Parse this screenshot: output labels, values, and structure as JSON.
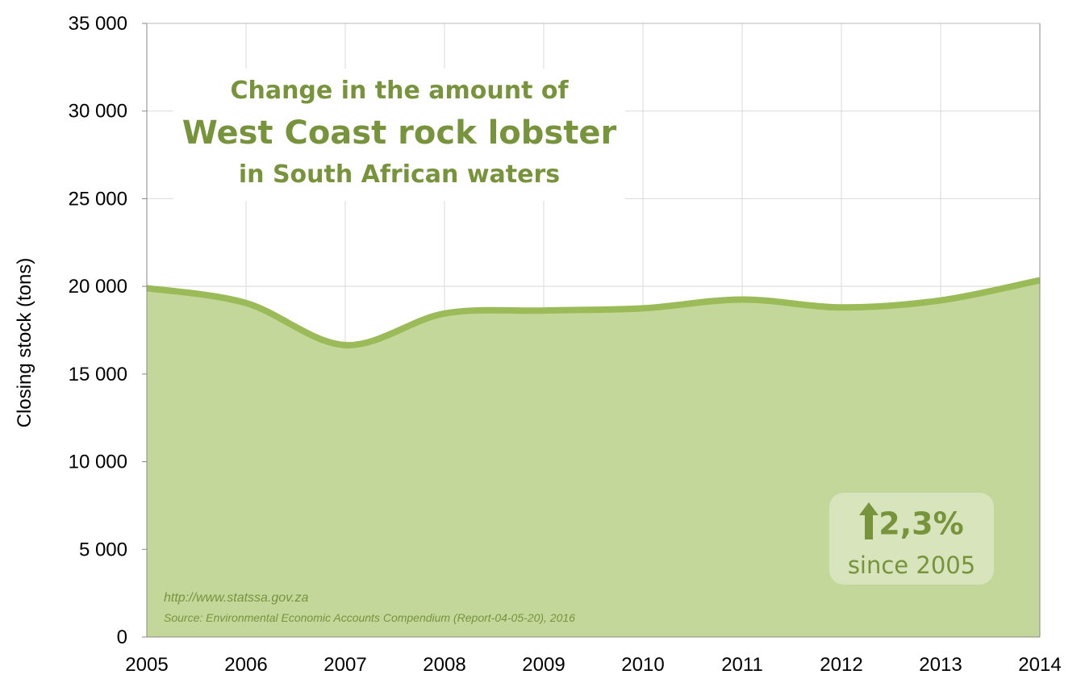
{
  "chart_data": {
    "type": "area",
    "title": [
      "Change in the amount of",
      "West Coast rock lobster",
      "in South African waters"
    ],
    "xlabel": "",
    "ylabel": "Closing stock (tons)",
    "x": [
      2005,
      2006,
      2007,
      2008,
      2009,
      2010,
      2011,
      2012,
      2013,
      2014
    ],
    "values": [
      19900,
      19050,
      16650,
      18450,
      18620,
      18750,
      19250,
      18800,
      19200,
      20350
    ],
    "ylim": [
      0,
      35000
    ],
    "yticks": [
      0,
      5000,
      10000,
      15000,
      20000,
      25000,
      30000,
      35000
    ],
    "ytick_labels": [
      "0",
      "5 000",
      "10 000",
      "15 000",
      "20 000",
      "25 000",
      "30 000",
      "35 000"
    ],
    "xtick_labels": [
      "2005",
      "2006",
      "2007",
      "2008",
      "2009",
      "2010",
      "2011",
      "2012",
      "2013",
      "2014"
    ],
    "grid": true,
    "smooth": true,
    "colors": {
      "fill": "#c4d79b",
      "line": "#9bbb59",
      "text": "#77933c",
      "badge": "#d8e4bc",
      "grid": "#d9d9d9"
    },
    "annotation": {
      "icon": "arrow-up-icon",
      "value": "2,3%",
      "label": "since 2005"
    },
    "source_url": "http://www.statssa.gov.za",
    "source": "Source: Environmental Economic Accounts Compendium (Report-04-05-20), 2016"
  }
}
